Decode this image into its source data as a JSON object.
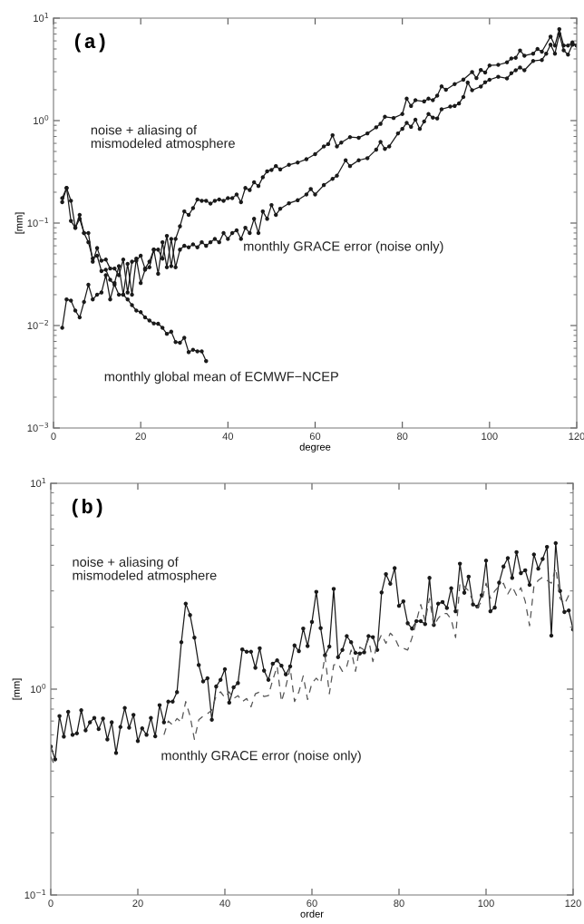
{
  "chart_data": [
    {
      "type": "line",
      "title": "(a)",
      "xlabel": "degree",
      "ylabel": "[mm]",
      "log": "y",
      "grid": false,
      "legend": false,
      "xlim": [
        0,
        120
      ],
      "xticks": [
        0,
        20,
        40,
        60,
        80,
        100,
        120
      ],
      "ylim": [
        0.001,
        10
      ],
      "yticks": [
        {
          "value": 0.001,
          "label": "10$^{−3}$"
        },
        {
          "value": 0.01,
          "label": "10$^{−2}$"
        },
        {
          "value": 0.1,
          "label": "10$^{−1}$"
        },
        {
          "value": 1,
          "label": "10$^{0}$"
        },
        {
          "value": 10,
          "label": "10$^{1}$"
        }
      ],
      "series": [
        {
          "name": "noise + aliasing of\nmismodeled atmosphere",
          "color": "#1a1a1a",
          "marker": "circle",
          "line_style": "solid",
          "x": [
            2,
            3,
            4,
            5,
            6,
            7,
            8,
            9,
            10,
            11,
            12,
            13,
            14,
            15,
            16,
            17,
            18,
            19,
            20,
            21,
            22,
            23,
            24,
            25,
            26,
            27,
            28,
            29,
            30,
            31,
            32,
            33,
            34,
            35,
            36,
            37,
            38,
            39,
            40,
            41,
            42,
            43,
            44,
            45,
            46,
            47,
            48,
            49,
            50,
            51,
            52,
            54,
            56,
            58,
            60,
            62,
            63,
            64,
            65,
            66,
            68,
            70,
            72,
            74,
            75,
            76,
            78,
            80,
            81,
            82,
            83,
            85,
            86,
            87,
            88,
            89,
            90,
            92,
            94,
            96,
            97,
            98,
            99,
            100,
            102,
            104,
            105,
            106,
            107,
            108,
            110,
            111,
            112,
            114,
            115,
            116,
            117,
            118,
            119,
            120
          ],
          "values": [
            0.16,
            0.22,
            0.165,
            0.09,
            0.12,
            0.08,
            0.08,
            0.042,
            0.057,
            0.043,
            0.044,
            0.036,
            0.036,
            0.031,
            0.044,
            0.021,
            0.042,
            0.043,
            0.048,
            0.036,
            0.042,
            0.055,
            0.055,
            0.045,
            0.075,
            0.038,
            0.07,
            0.093,
            0.13,
            0.12,
            0.14,
            0.17,
            0.165,
            0.165,
            0.155,
            0.165,
            0.17,
            0.165,
            0.175,
            0.175,
            0.19,
            0.16,
            0.22,
            0.21,
            0.25,
            0.23,
            0.28,
            0.32,
            0.33,
            0.36,
            0.334,
            0.37,
            0.39,
            0.42,
            0.47,
            0.56,
            0.59,
            0.72,
            0.56,
            0.61,
            0.69,
            0.68,
            0.75,
            0.86,
            0.93,
            1.09,
            1.06,
            1.16,
            1.64,
            1.39,
            1.58,
            1.54,
            1.64,
            1.58,
            1.75,
            2.16,
            2.0,
            2.27,
            2.51,
            2.98,
            2.6,
            3.12,
            2.95,
            3.45,
            3.5,
            3.7,
            4.04,
            4.1,
            4.84,
            4.3,
            4.5,
            5.0,
            4.7,
            6.6,
            5.4,
            7.8,
            5.4,
            5.4,
            5.8,
            5.4
          ]
        },
        {
          "name": "monthly GRACE error (noise only)",
          "color": "#1a1a1a",
          "marker": "circle",
          "line_style": "solid",
          "x": [
            2,
            3,
            4,
            5,
            6,
            7,
            8,
            9,
            10,
            11,
            12,
            13,
            14,
            15,
            16,
            17,
            18,
            19,
            20,
            21,
            22,
            23,
            24,
            25,
            26,
            27,
            28,
            29,
            30,
            31,
            32,
            33,
            34,
            35,
            36,
            37,
            38,
            39,
            40,
            41,
            42,
            43,
            44,
            45,
            46,
            47,
            48,
            49,
            50,
            51,
            52,
            54,
            56,
            58,
            59,
            60,
            62,
            64,
            65,
            67,
            68,
            70,
            72,
            74,
            75,
            76,
            77,
            79,
            80,
            81,
            82,
            83,
            84,
            85,
            86,
            87,
            88,
            89,
            91,
            92,
            93,
            94,
            95,
            96,
            98,
            99,
            100,
            102,
            104,
            105,
            106,
            107,
            108,
            110,
            112,
            113,
            114,
            115,
            116,
            117,
            118,
            119,
            120
          ],
          "values": [
            0.0095,
            0.018,
            0.0175,
            0.014,
            0.012,
            0.017,
            0.025,
            0.018,
            0.02,
            0.021,
            0.031,
            0.018,
            0.026,
            0.038,
            0.02,
            0.04,
            0.02,
            0.045,
            0.026,
            0.035,
            0.037,
            0.055,
            0.032,
            0.065,
            0.037,
            0.07,
            0.037,
            0.055,
            0.06,
            0.058,
            0.062,
            0.058,
            0.065,
            0.06,
            0.065,
            0.07,
            0.065,
            0.08,
            0.07,
            0.08,
            0.085,
            0.07,
            0.09,
            0.08,
            0.11,
            0.08,
            0.13,
            0.11,
            0.15,
            0.12,
            0.138,
            0.156,
            0.167,
            0.19,
            0.215,
            0.19,
            0.235,
            0.27,
            0.29,
            0.41,
            0.36,
            0.41,
            0.43,
            0.52,
            0.62,
            0.53,
            0.56,
            0.75,
            0.83,
            0.95,
            0.87,
            1.02,
            0.83,
            0.98,
            1.16,
            1.07,
            1.05,
            1.29,
            1.37,
            1.39,
            1.47,
            1.7,
            2.35,
            1.98,
            2.15,
            2.37,
            2.5,
            2.68,
            2.58,
            2.9,
            3.1,
            3.3,
            3.1,
            3.82,
            3.9,
            4.5,
            5.5,
            4.5,
            7.0,
            4.85,
            4.4,
            5.5,
            5.4
          ]
        },
        {
          "name": "monthly global mean of ECMWF−NCEP",
          "color": "#1a1a1a",
          "marker": "circle",
          "line_style": "solid",
          "x": [
            2,
            3,
            4,
            5,
            6,
            7,
            8,
            9,
            10,
            11,
            12,
            13,
            14,
            15,
            16,
            17,
            18,
            19,
            20,
            21,
            22,
            23,
            24,
            25,
            26,
            27,
            28,
            29,
            30,
            31,
            32,
            33,
            34,
            35
          ],
          "values": [
            0.175,
            0.22,
            0.105,
            0.09,
            0.11,
            0.08,
            0.065,
            0.045,
            0.048,
            0.034,
            0.035,
            0.028,
            0.025,
            0.02,
            0.02,
            0.018,
            0.0158,
            0.014,
            0.0135,
            0.012,
            0.0112,
            0.0105,
            0.0104,
            0.0095,
            0.0083,
            0.0087,
            0.0069,
            0.0068,
            0.0076,
            0.0055,
            0.0058,
            0.0056,
            0.0056,
            0.0045
          ]
        }
      ]
    },
    {
      "type": "line",
      "title": "(b)",
      "xlabel": "order",
      "ylabel": "[mm]",
      "log": "y",
      "grid": false,
      "legend": false,
      "xlim": [
        0,
        120
      ],
      "xticks": [
        0,
        20,
        40,
        60,
        80,
        100,
        120
      ],
      "ylim": [
        0.1,
        10
      ],
      "yticks": [
        {
          "value": 0.1,
          "label": "10$^{−1}$"
        },
        {
          "value": 1,
          "label": "10$^{0}$"
        },
        {
          "value": 10,
          "label": "10$^{1}$"
        }
      ],
      "x": [
        0,
        1,
        2,
        3,
        4,
        5,
        6,
        7,
        8,
        9,
        10,
        11,
        12,
        13,
        14,
        15,
        16,
        17,
        18,
        19,
        20,
        21,
        22,
        23,
        24,
        25,
        26,
        27,
        28,
        29,
        30,
        31,
        32,
        33,
        34,
        35,
        36,
        37,
        38,
        39,
        40,
        41,
        42,
        43,
        44,
        45,
        46,
        47,
        48,
        49,
        50,
        51,
        52,
        53,
        54,
        55,
        56,
        57,
        58,
        59,
        60,
        61,
        62,
        63,
        64,
        65,
        66,
        67,
        68,
        69,
        70,
        71,
        72,
        73,
        74,
        75,
        76,
        77,
        78,
        79,
        80,
        81,
        82,
        83,
        84,
        85,
        86,
        87,
        88,
        89,
        90,
        91,
        92,
        93,
        94,
        95,
        96,
        97,
        98,
        99,
        100,
        101,
        102,
        103,
        104,
        105,
        106,
        107,
        108,
        109,
        110,
        111,
        112,
        113,
        114,
        115,
        116,
        117,
        118,
        119,
        120
      ],
      "series": [
        {
          "name": "noise + aliasing of\nmismodeled atmosphere",
          "color": "#1a1a1a",
          "marker": "circle",
          "line_style": "solid",
          "values": [
            0.526,
            0.456,
            0.74,
            0.588,
            0.776,
            0.6,
            0.61,
            0.79,
            0.63,
            0.69,
            0.725,
            0.64,
            0.72,
            0.57,
            0.69,
            0.49,
            0.655,
            0.81,
            0.65,
            0.75,
            0.56,
            0.645,
            0.6,
            0.725,
            0.59,
            0.836,
            0.69,
            0.87,
            0.87,
            0.967,
            1.69,
            2.6,
            2.29,
            1.78,
            1.31,
            1.09,
            1.13,
            0.71,
            1.03,
            1.11,
            1.25,
            0.86,
            1.02,
            1.07,
            1.56,
            1.52,
            1.52,
            1.27,
            1.58,
            1.23,
            1.11,
            1.33,
            1.38,
            1.3,
            1.18,
            1.29,
            1.63,
            1.53,
            1.97,
            1.62,
            2.12,
            2.97,
            1.98,
            1.46,
            1.61,
            3.07,
            1.43,
            1.55,
            1.81,
            1.69,
            1.5,
            1.49,
            1.51,
            1.81,
            1.79,
            1.55,
            2.95,
            3.62,
            3.25,
            3.87,
            2.54,
            2.67,
            2.09,
            1.97,
            2.14,
            2.14,
            2.07,
            3.47,
            2.05,
            2.6,
            2.65,
            2.48,
            3.09,
            2.39,
            4.07,
            2.94,
            3.52,
            2.58,
            2.52,
            2.86,
            4.21,
            2.39,
            2.49,
            3.29,
            3.94,
            4.33,
            3.47,
            4.63,
            3.66,
            3.78,
            3.21,
            4.51,
            3.85,
            4.29,
            4.91,
            1.82,
            5.12,
            3.0,
            2.37,
            2.41,
            1.95
          ]
        },
        {
          "name": "monthly GRACE error (noise only)",
          "color": "#555555",
          "marker": "none",
          "line_style": "dashed",
          "values": [
            0.47,
            0.42,
            null,
            null,
            null,
            null,
            null,
            null,
            null,
            null,
            null,
            null,
            null,
            null,
            null,
            null,
            null,
            null,
            null,
            null,
            null,
            null,
            null,
            null,
            null,
            null,
            0.6,
            0.7,
            0.67,
            0.72,
            0.69,
            0.87,
            0.74,
            0.57,
            0.71,
            0.74,
            0.76,
            0.79,
            0.93,
            0.97,
            0.91,
            0.97,
            0.9,
            0.93,
            0.87,
            0.9,
            0.82,
            0.95,
            0.97,
            0.92,
            0.93,
            1.11,
            1.29,
            0.87,
            1.03,
            1.27,
            0.87,
            0.97,
            1.16,
            0.89,
            1.07,
            1.13,
            1.07,
            1.45,
            0.95,
            1.31,
            1.33,
            1.22,
            1.29,
            1.55,
            1.22,
            1.6,
            1.55,
            1.75,
            1.36,
            1.66,
            1.84,
            1.67,
            1.87,
            1.78,
            1.6,
            1.58,
            1.55,
            1.78,
            2.14,
            2.58,
            2.14,
            2.76,
            2.03,
            2.21,
            2.33,
            2.33,
            2.18,
            1.78,
            3.27,
            3.16,
            3.0,
            2.67,
            2.49,
            2.67,
            3.27,
            2.76,
            3.0,
            3.16,
            3.27,
            2.9,
            3.16,
            2.86,
            3.11,
            2.67,
            2.03,
            3.16,
            3.38,
            3.5,
            3.38,
            3.27,
            3.87,
            2.76,
            2.58,
            2.86,
            2.86
          ]
        }
      ]
    }
  ]
}
